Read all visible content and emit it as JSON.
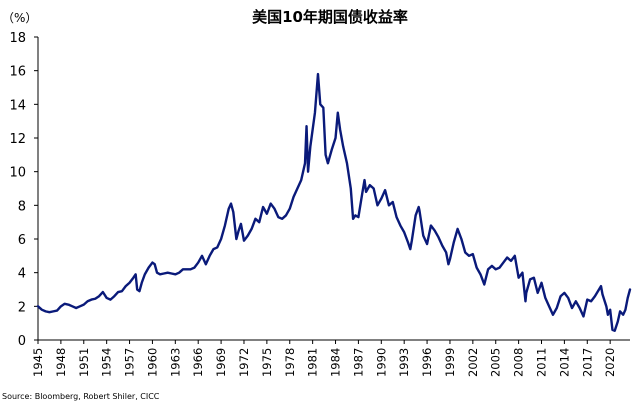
{
  "chart_data": {
    "type": "line",
    "title": "美国10年期国债收益率",
    "unit_label": "（%）",
    "source": "Source: Bloomberg, Robert Shiler, CICC",
    "ylim": [
      0,
      18
    ],
    "y_ticks": [
      0,
      2,
      4,
      6,
      8,
      10,
      12,
      14,
      16,
      18
    ],
    "x_range": [
      1945,
      2022.6
    ],
    "x_ticks": [
      "1945",
      "1948",
      "1951",
      "1954",
      "1957",
      "1960",
      "1963",
      "1966",
      "1969",
      "1972",
      "1975",
      "1978",
      "1981",
      "1984",
      "1987",
      "1990",
      "1993",
      "1996",
      "1999",
      "2002",
      "2005",
      "2008",
      "2011",
      "2014",
      "2017",
      "2020"
    ],
    "grid": false,
    "line_color": "#0a1a7a",
    "series": [
      {
        "points": [
          [
            1945.0,
            2.0
          ],
          [
            1945.5,
            1.8
          ],
          [
            1946.0,
            1.7
          ],
          [
            1946.5,
            1.65
          ],
          [
            1947.0,
            1.7
          ],
          [
            1947.5,
            1.75
          ],
          [
            1948.0,
            2.0
          ],
          [
            1948.5,
            2.15
          ],
          [
            1949.0,
            2.1
          ],
          [
            1949.5,
            2.0
          ],
          [
            1950.0,
            1.9
          ],
          [
            1950.5,
            2.0
          ],
          [
            1951.0,
            2.1
          ],
          [
            1951.5,
            2.3
          ],
          [
            1952.0,
            2.4
          ],
          [
            1952.5,
            2.45
          ],
          [
            1953.0,
            2.6
          ],
          [
            1953.5,
            2.85
          ],
          [
            1954.0,
            2.5
          ],
          [
            1954.5,
            2.4
          ],
          [
            1955.0,
            2.6
          ],
          [
            1955.5,
            2.85
          ],
          [
            1956.0,
            2.9
          ],
          [
            1956.5,
            3.2
          ],
          [
            1957.0,
            3.4
          ],
          [
            1957.5,
            3.7
          ],
          [
            1957.8,
            3.9
          ],
          [
            1958.0,
            3.0
          ],
          [
            1958.3,
            2.9
          ],
          [
            1958.6,
            3.4
          ],
          [
            1959.0,
            3.9
          ],
          [
            1959.5,
            4.3
          ],
          [
            1960.0,
            4.6
          ],
          [
            1960.3,
            4.5
          ],
          [
            1960.6,
            4.0
          ],
          [
            1961.0,
            3.9
          ],
          [
            1961.5,
            3.95
          ],
          [
            1962.0,
            4.0
          ],
          [
            1962.5,
            3.95
          ],
          [
            1963.0,
            3.9
          ],
          [
            1963.5,
            4.0
          ],
          [
            1964.0,
            4.2
          ],
          [
            1964.5,
            4.2
          ],
          [
            1965.0,
            4.2
          ],
          [
            1965.5,
            4.3
          ],
          [
            1966.0,
            4.6
          ],
          [
            1966.5,
            5.0
          ],
          [
            1967.0,
            4.5
          ],
          [
            1967.5,
            5.0
          ],
          [
            1968.0,
            5.4
          ],
          [
            1968.5,
            5.5
          ],
          [
            1969.0,
            6.0
          ],
          [
            1969.5,
            6.8
          ],
          [
            1970.0,
            7.8
          ],
          [
            1970.3,
            8.1
          ],
          [
            1970.6,
            7.6
          ],
          [
            1971.0,
            6.0
          ],
          [
            1971.3,
            6.5
          ],
          [
            1971.6,
            6.9
          ],
          [
            1972.0,
            5.9
          ],
          [
            1972.5,
            6.2
          ],
          [
            1973.0,
            6.6
          ],
          [
            1973.5,
            7.2
          ],
          [
            1974.0,
            7.0
          ],
          [
            1974.5,
            7.9
          ],
          [
            1975.0,
            7.5
          ],
          [
            1975.5,
            8.1
          ],
          [
            1976.0,
            7.8
          ],
          [
            1976.5,
            7.3
          ],
          [
            1977.0,
            7.2
          ],
          [
            1977.5,
            7.4
          ],
          [
            1978.0,
            7.8
          ],
          [
            1978.5,
            8.5
          ],
          [
            1979.0,
            9.0
          ],
          [
            1979.5,
            9.5
          ],
          [
            1980.0,
            10.5
          ],
          [
            1980.2,
            12.7
          ],
          [
            1980.4,
            10.0
          ],
          [
            1980.7,
            11.5
          ],
          [
            1981.0,
            12.5
          ],
          [
            1981.3,
            13.5
          ],
          [
            1981.7,
            15.8
          ],
          [
            1982.0,
            14.0
          ],
          [
            1982.4,
            13.8
          ],
          [
            1982.7,
            11.0
          ],
          [
            1983.0,
            10.5
          ],
          [
            1983.5,
            11.3
          ],
          [
            1984.0,
            12.0
          ],
          [
            1984.3,
            13.5
          ],
          [
            1984.6,
            12.5
          ],
          [
            1985.0,
            11.5
          ],
          [
            1985.5,
            10.5
          ],
          [
            1986.0,
            9.0
          ],
          [
            1986.3,
            7.2
          ],
          [
            1986.6,
            7.4
          ],
          [
            1987.0,
            7.3
          ],
          [
            1987.5,
            8.7
          ],
          [
            1987.8,
            9.5
          ],
          [
            1988.0,
            8.8
          ],
          [
            1988.5,
            9.2
          ],
          [
            1989.0,
            9.0
          ],
          [
            1989.5,
            8.0
          ],
          [
            1990.0,
            8.4
          ],
          [
            1990.5,
            8.9
          ],
          [
            1991.0,
            8.0
          ],
          [
            1991.5,
            8.2
          ],
          [
            1992.0,
            7.3
          ],
          [
            1992.5,
            6.8
          ],
          [
            1993.0,
            6.4
          ],
          [
            1993.5,
            5.8
          ],
          [
            1993.8,
            5.4
          ],
          [
            1994.0,
            5.9
          ],
          [
            1994.5,
            7.4
          ],
          [
            1994.9,
            7.9
          ],
          [
            1995.0,
            7.7
          ],
          [
            1995.5,
            6.2
          ],
          [
            1996.0,
            5.7
          ],
          [
            1996.5,
            6.8
          ],
          [
            1997.0,
            6.5
          ],
          [
            1997.5,
            6.1
          ],
          [
            1998.0,
            5.6
          ],
          [
            1998.5,
            5.2
          ],
          [
            1998.8,
            4.5
          ],
          [
            1999.0,
            4.8
          ],
          [
            1999.5,
            5.8
          ],
          [
            2000.0,
            6.6
          ],
          [
            2000.5,
            6.0
          ],
          [
            2001.0,
            5.2
          ],
          [
            2001.5,
            5.0
          ],
          [
            2002.0,
            5.1
          ],
          [
            2002.5,
            4.3
          ],
          [
            2003.0,
            3.9
          ],
          [
            2003.5,
            3.3
          ],
          [
            2004.0,
            4.2
          ],
          [
            2004.5,
            4.4
          ],
          [
            2005.0,
            4.2
          ],
          [
            2005.5,
            4.3
          ],
          [
            2006.0,
            4.6
          ],
          [
            2006.5,
            4.9
          ],
          [
            2007.0,
            4.7
          ],
          [
            2007.5,
            5.0
          ],
          [
            2008.0,
            3.7
          ],
          [
            2008.5,
            4.0
          ],
          [
            2008.9,
            2.3
          ],
          [
            2009.0,
            2.8
          ],
          [
            2009.5,
            3.6
          ],
          [
            2010.0,
            3.7
          ],
          [
            2010.5,
            2.8
          ],
          [
            2011.0,
            3.4
          ],
          [
            2011.5,
            2.5
          ],
          [
            2012.0,
            2.0
          ],
          [
            2012.5,
            1.5
          ],
          [
            2013.0,
            1.9
          ],
          [
            2013.5,
            2.6
          ],
          [
            2014.0,
            2.8
          ],
          [
            2014.5,
            2.5
          ],
          [
            2015.0,
            1.9
          ],
          [
            2015.5,
            2.3
          ],
          [
            2016.0,
            1.9
          ],
          [
            2016.5,
            1.4
          ],
          [
            2017.0,
            2.4
          ],
          [
            2017.5,
            2.3
          ],
          [
            2018.0,
            2.6
          ],
          [
            2018.8,
            3.2
          ],
          [
            2019.0,
            2.7
          ],
          [
            2019.5,
            2.0
          ],
          [
            2019.7,
            1.5
          ],
          [
            2020.0,
            1.8
          ],
          [
            2020.3,
            0.6
          ],
          [
            2020.6,
            0.55
          ],
          [
            2021.0,
            1.1
          ],
          [
            2021.3,
            1.7
          ],
          [
            2021.7,
            1.5
          ],
          [
            2022.0,
            1.8
          ],
          [
            2022.3,
            2.5
          ],
          [
            2022.6,
            3.0
          ]
        ]
      }
    ]
  }
}
